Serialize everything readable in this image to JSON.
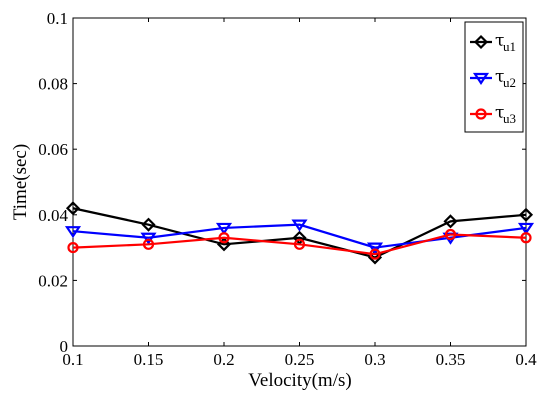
{
  "chart_data": {
    "type": "line",
    "title": "",
    "xlabel": "Velocity(m/s)",
    "ylabel": "Time(sec)",
    "xlim": [
      0.1,
      0.4
    ],
    "ylim": [
      0,
      0.1
    ],
    "x_ticks": [
      "0.1",
      "0.15",
      "0.2",
      "0.25",
      "0.3",
      "0.35",
      "0.4"
    ],
    "y_ticks": [
      "0",
      "0.02",
      "0.04",
      "0.06",
      "0.08",
      "0.1"
    ],
    "x": [
      0.1,
      0.15,
      0.2,
      0.25,
      0.3,
      0.35,
      0.4
    ],
    "grid": false,
    "legend_position": "top-right",
    "series": [
      {
        "name": "τu1",
        "legend_main": "τ",
        "legend_sub": "u1",
        "color": "#000000",
        "marker": "diamond",
        "values": [
          0.042,
          0.037,
          0.031,
          0.033,
          0.027,
          0.038,
          0.04
        ]
      },
      {
        "name": "τu2",
        "legend_main": "τ",
        "legend_sub": "u2",
        "color": "#0000ff",
        "marker": "triangle-down",
        "values": [
          0.035,
          0.033,
          0.036,
          0.037,
          0.03,
          0.033,
          0.036
        ]
      },
      {
        "name": "τu3",
        "legend_main": "τ",
        "legend_sub": "u3",
        "color": "#ff0000",
        "marker": "circle",
        "values": [
          0.03,
          0.031,
          0.033,
          0.031,
          0.028,
          0.034,
          0.033
        ]
      }
    ]
  }
}
